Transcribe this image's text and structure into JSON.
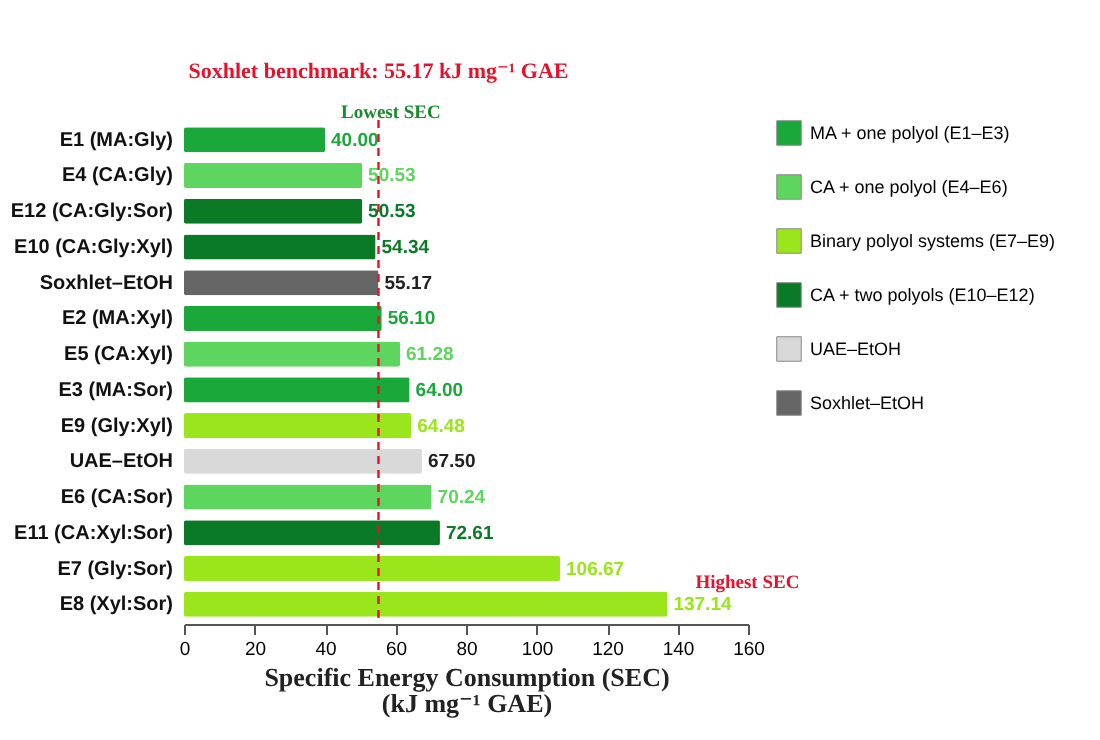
{
  "chart_data": {
    "type": "bar",
    "orientation": "horizontal",
    "xlabel": "Specific Energy Consumption (SEC)\n(kJ mg⁻¹ GAE)",
    "categories": [
      "E1 (MA:Gly)",
      "E4 (CA:Gly)",
      "E12 (CA:Gly:Sor)",
      "E10 (CA:Gly:Xyl)",
      "Soxhlet–EtOH",
      "E2 (MA:Xyl)",
      "E5 (CA:Xyl)",
      "E3 (MA:Sor)",
      "E9 (Gly:Xyl)",
      "UAE–EtOH",
      "E6 (CA:Sor)",
      "E11 (CA:Xyl:Sor)",
      "E7 (Gly:Sor)",
      "E8 (Xyl:Sor)"
    ],
    "series": [
      {
        "name": "MA + one polyol (E1–E3)",
        "color": "#1aa83a",
        "values": [
          40.0,
          null,
          null,
          null,
          null,
          56.1,
          null,
          64.0,
          null,
          null,
          null,
          null,
          null,
          null
        ],
        "value_labels": [
          "40.00",
          null,
          null,
          null,
          null,
          "56.10",
          null,
          "64.00",
          null,
          null,
          null,
          null,
          null,
          null
        ]
      },
      {
        "name": "CA + one polyol (E4–E6)",
        "color": "#5dd55f",
        "values": [
          null,
          50.53,
          null,
          null,
          null,
          null,
          61.28,
          null,
          null,
          null,
          70.24,
          null,
          null,
          null
        ],
        "value_labels": [
          null,
          "50.53",
          null,
          null,
          null,
          null,
          "61.28",
          null,
          null,
          null,
          "70.24",
          null,
          null,
          null
        ]
      },
      {
        "name": "Binary polyol systems (E7–E9)",
        "color": "#9ae51c",
        "values": [
          null,
          null,
          null,
          null,
          null,
          null,
          null,
          null,
          64.48,
          null,
          null,
          null,
          106.67,
          137.14
        ],
        "value_labels": [
          null,
          null,
          null,
          null,
          null,
          null,
          null,
          null,
          "64.48",
          null,
          null,
          null,
          "106.67",
          "137.14"
        ]
      },
      {
        "name": "CA + two polyols (E10–E12)",
        "color": "#0b7a27",
        "values": [
          null,
          null,
          50.53,
          54.34,
          null,
          null,
          null,
          null,
          null,
          null,
          null,
          72.61,
          null,
          null
        ],
        "value_labels": [
          null,
          null,
          "50.53",
          "54.34",
          null,
          null,
          null,
          null,
          null,
          null,
          null,
          "72.61",
          null,
          null
        ]
      },
      {
        "name": "UAE–EtOH",
        "color": "#d9d9d9",
        "values": [
          null,
          null,
          null,
          null,
          null,
          null,
          null,
          null,
          null,
          67.5,
          null,
          null,
          null,
          null
        ],
        "value_labels": [
          null,
          null,
          null,
          null,
          null,
          null,
          null,
          null,
          null,
          "67.50",
          null,
          null,
          null,
          null
        ]
      },
      {
        "name": "Soxhlet–EtOH",
        "color": "#666666",
        "values": [
          null,
          null,
          null,
          null,
          55.17,
          null,
          null,
          null,
          null,
          null,
          null,
          null,
          null,
          null
        ],
        "value_labels": [
          null,
          null,
          null,
          null,
          "55.17",
          null,
          null,
          null,
          null,
          null,
          null,
          null,
          null,
          null
        ]
      }
    ],
    "xlim": [
      0,
      160
    ],
    "xticks": [
      0,
      20,
      40,
      60,
      80,
      100,
      120,
      140,
      160
    ],
    "grid": false,
    "legend": "right",
    "ref_lines": [
      {
        "axis": "x",
        "value": 55.17,
        "label": "Soxhlet benchmark: 55.17 kJ mg⁻¹ GAE",
        "color": "#e8102a",
        "line_style": "dashed"
      }
    ],
    "annotations": [
      {
        "text": "Lowest SEC",
        "x": 40,
        "y": "E1 (MA:Gly)"
      },
      {
        "text": "Highest SEC",
        "x": 137.14,
        "y": "E8 (Xyl:Sor)"
      }
    ]
  }
}
